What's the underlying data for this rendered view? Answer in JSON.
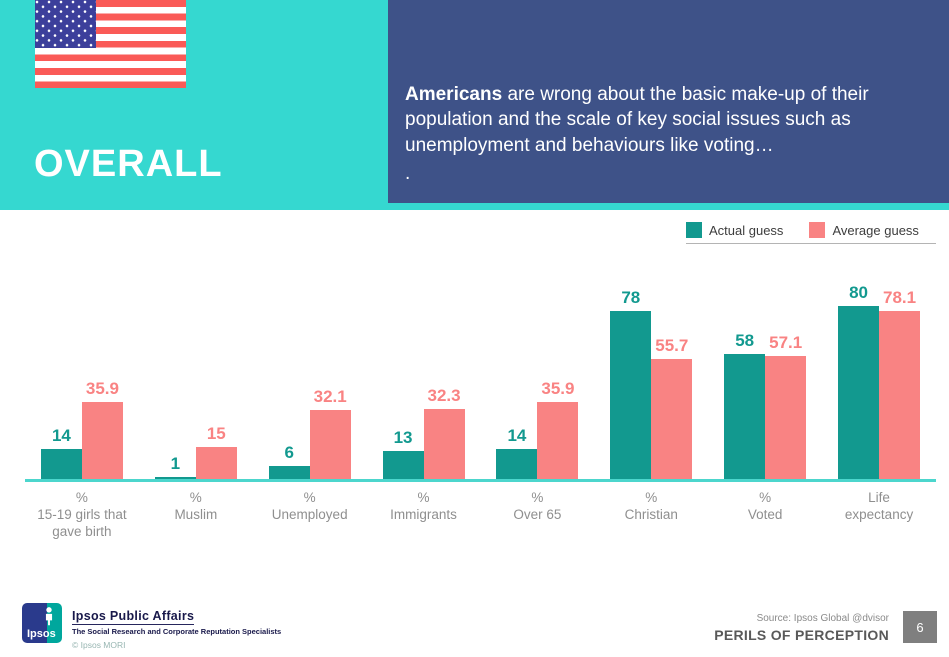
{
  "header": {
    "section_label": "OVERALL",
    "flag": "us-flag",
    "callout": {
      "lead": "Americans",
      "rest": " are wrong about the basic make-up of their population and the scale of key social issues such as unemployment and behaviours like voting…",
      "trailing_period": "."
    },
    "colors": {
      "band": "#35d8d0",
      "callout_bg": "#3e5288"
    }
  },
  "legend": {
    "items": [
      {
        "label": "Actual guess",
        "color": "#12998f"
      },
      {
        "label": "Average guess",
        "color": "#f98383"
      }
    ]
  },
  "chart_data": {
    "type": "bar",
    "categories": [
      "%\n15-19 girls that\ngave birth",
      "%\nMuslim",
      "%\nUnemployed",
      "%\nImmigrants",
      "%\nOver 65",
      "%\nChristian",
      "%\nVoted",
      "Life\nexpectancy"
    ],
    "series": [
      {
        "name": "Actual guess",
        "color": "#12998f",
        "values": [
          14,
          1,
          6,
          13,
          14,
          78,
          58,
          80
        ]
      },
      {
        "name": "Average guess",
        "color": "#f98383",
        "values": [
          35.9,
          15,
          32.1,
          32.3,
          35.9,
          55.7,
          57.1,
          78.1
        ]
      }
    ],
    "title": "",
    "xlabel": "",
    "ylabel": "",
    "ylim": [
      0,
      83
    ],
    "grid": false,
    "value_labels": true,
    "legend_position": "top-right",
    "axis_line_color": "#4cd6cd"
  },
  "footer": {
    "logo_text": "Ipsos",
    "org": "Ipsos Public Affairs",
    "tagline": "The Social Research and Corporate Reputation Specialists",
    "copyright": "© Ipsos MORI",
    "source": "Source: Ipsos Global @dvisor",
    "deck_title": "PERILS OF PERCEPTION",
    "page_number": "6"
  }
}
